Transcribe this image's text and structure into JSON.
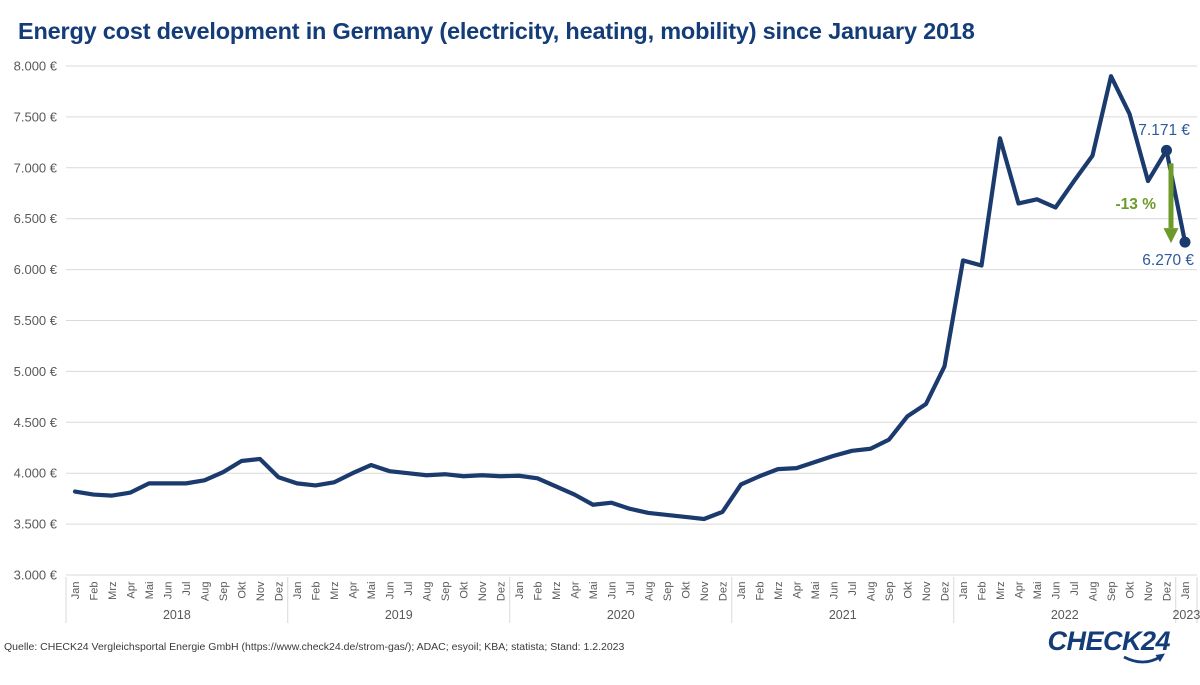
{
  "header": {
    "title": "Energy cost development in Germany (electricity, heating, mobility) since January 2018"
  },
  "annotations": {
    "peak_value_label": "7.171 €",
    "end_value_label": "6.270 €",
    "change_label": "-13 %"
  },
  "footer": {
    "source": "Quelle: CHECK24 Vergleichsportal Energie GmbH (https://www.check24.de/strom-gas/); ADAC; esyoil; KBA; statista; Stand: 1.2.2023",
    "logo_text": "CHECK24"
  },
  "colors": {
    "line": "#1b3a6d",
    "title": "#143c78",
    "annotation_blue": "#2e5b97",
    "green": "#6e9a2c",
    "grid": "#d9d9d9",
    "axis_text": "#595959",
    "source_text": "#3a3a3a"
  },
  "chart_data": {
    "type": "line",
    "title": "Energy cost development in Germany (electricity, heating, mobility) since January 2018",
    "unit": "€",
    "ylim": [
      3000,
      8000
    ],
    "y_tick_step": 500,
    "grid": "horizontal",
    "legend": "none",
    "y_ticks": [
      {
        "value": 8000,
        "label": "8.000 €"
      },
      {
        "value": 7500,
        "label": "7.500 €"
      },
      {
        "value": 7000,
        "label": "7.000 €"
      },
      {
        "value": 6500,
        "label": "6.500 €"
      },
      {
        "value": 6000,
        "label": "6.000 €"
      },
      {
        "value": 5500,
        "label": "5.500 €"
      },
      {
        "value": 5000,
        "label": "5.000 €"
      },
      {
        "value": 4500,
        "label": "4.500 €"
      },
      {
        "value": 4000,
        "label": "4.000 €"
      },
      {
        "value": 3500,
        "label": "3.500 €"
      },
      {
        "value": 3000,
        "label": "3.000 €"
      }
    ],
    "years": [
      {
        "label": "2018",
        "months": [
          "Jan",
          "Feb",
          "Mrz",
          "Apr",
          "Mai",
          "Jun",
          "Jul",
          "Aug",
          "Sep",
          "Okt",
          "Nov",
          "Dez"
        ],
        "values": [
          3820,
          3790,
          3780,
          3810,
          3900,
          3900,
          3900,
          3930,
          4010,
          4120,
          4140,
          3960
        ]
      },
      {
        "label": "2019",
        "months": [
          "Jan",
          "Feb",
          "Mrz",
          "Apr",
          "Mai",
          "Jun",
          "Jul",
          "Aug",
          "Sep",
          "Okt",
          "Nov",
          "Dez"
        ],
        "values": [
          3900,
          3880,
          3910,
          4000,
          4080,
          4020,
          4000,
          3980,
          3990,
          3970,
          3980,
          3970
        ]
      },
      {
        "label": "2020",
        "months": [
          "Jan",
          "Feb",
          "Mrz",
          "Apr",
          "Mai",
          "Jun",
          "Jul",
          "Aug",
          "Sep",
          "Okt",
          "Nov",
          "Dez"
        ],
        "values": [
          3975,
          3950,
          3870,
          3790,
          3690,
          3710,
          3650,
          3610,
          3590,
          3570,
          3550,
          3620
        ]
      },
      {
        "label": "2021",
        "months": [
          "Jan",
          "Feb",
          "Mrz",
          "Apr",
          "Mai",
          "Jun",
          "Jul",
          "Aug",
          "Sep",
          "Okt",
          "Nov",
          "Dez"
        ],
        "values": [
          3890,
          3970,
          4040,
          4050,
          4110,
          4170,
          4220,
          4240,
          4330,
          4560,
          4680,
          5050
        ]
      },
      {
        "label": "2022",
        "months": [
          "Jan",
          "Feb",
          "Mrz",
          "Apr",
          "Mai",
          "Jun",
          "Jul",
          "Aug",
          "Sep",
          "Okt",
          "Nov",
          "Dez"
        ],
        "values": [
          6090,
          6040,
          7290,
          6650,
          6690,
          6610,
          6870,
          7120,
          7900,
          7530,
          6870,
          7171
        ]
      },
      {
        "label": "2023",
        "months": [
          "Jan"
        ],
        "values": [
          6270
        ]
      }
    ],
    "highlight": {
      "from_month": "Dez 2022",
      "from_value": 7171,
      "from_label": "7.171 €",
      "to_month": "Jan 2023",
      "to_value": 6270,
      "to_label": "6.270 €",
      "change_label": "-13 %",
      "marked_points": 2
    }
  }
}
